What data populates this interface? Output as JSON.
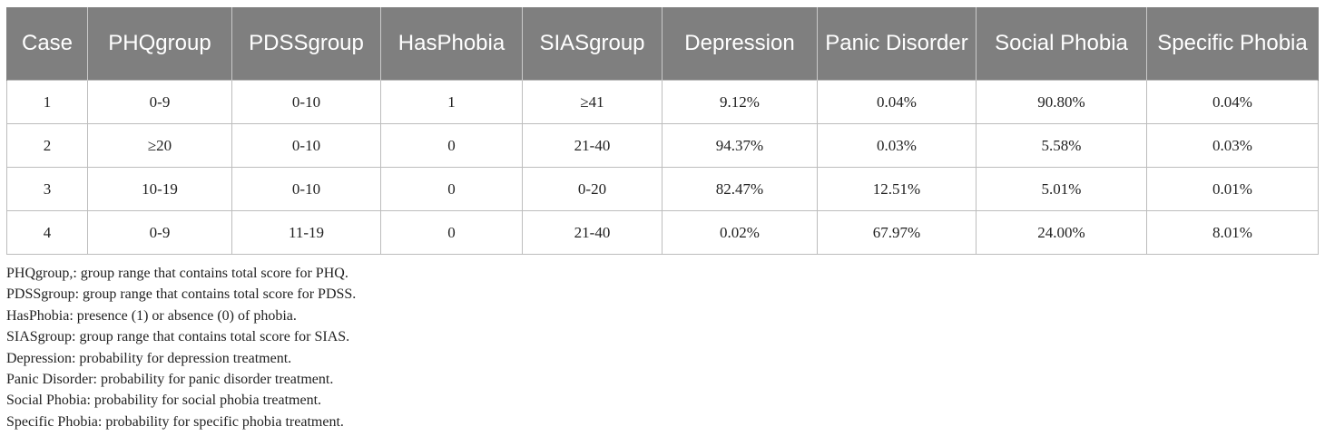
{
  "table": {
    "headers": [
      "Case",
      "PHQgroup",
      "PDSSgroup",
      "HasPhobia",
      "SIASgroup",
      "Depression",
      "Panic Disorder",
      "Social Phobia",
      "Specific Phobia"
    ],
    "rows": [
      [
        "1",
        "0-9",
        "0-10",
        "1",
        "≥41",
        "9.12%",
        "0.04%",
        "90.80%",
        "0.04%"
      ],
      [
        "2",
        "≥20",
        "0-10",
        "0",
        "21-40",
        "94.37%",
        "0.03%",
        "5.58%",
        "0.03%"
      ],
      [
        "3",
        "10-19",
        "0-10",
        "0",
        "0-20",
        "82.47%",
        "12.51%",
        "5.01%",
        "0.01%"
      ],
      [
        "4",
        "0-9",
        "11-19",
        "0",
        "21-40",
        "0.02%",
        "67.97%",
        "24.00%",
        "8.01%"
      ]
    ]
  },
  "footnotes": [
    "PHQgroup,: group range that contains total score for PHQ.",
    "PDSSgroup: group range that contains total score for PDSS.",
    "HasPhobia: presence (1) or absence (0) of phobia.",
    "SIASgroup: group range that contains total score for SIAS.",
    "Depression: probability for depression treatment.",
    "Panic Disorder: probability for panic disorder treatment.",
    "Social Phobia: probability for social phobia treatment.",
    "Specific Phobia: probability for specific phobia treatment."
  ],
  "colors": {
    "header_background": "#7f7f7f",
    "header_text": "#ffffff",
    "cell_border": "#bdbdbd"
  }
}
